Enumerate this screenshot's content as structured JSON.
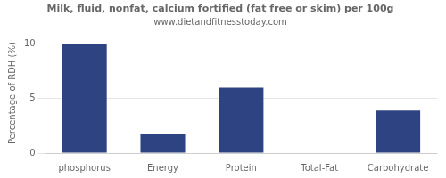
{
  "chart_data": {
    "type": "bar",
    "title": "Milk, fluid, nonfat, calcium fortified (fat free or skim) per 100g",
    "subtitle": "www.dietandfitnesstoday.com",
    "categories": [
      "phosphorus",
      "Energy",
      "Protein",
      "Total-Fat",
      "Carbohydrate"
    ],
    "values": [
      10.0,
      1.8,
      6.0,
      0.05,
      3.9
    ],
    "color": "#2e4482",
    "ylabel": "Percentage of RDH (%)",
    "ylim": [
      0,
      11
    ],
    "yticks": [
      0,
      5,
      10
    ],
    "grid": true
  }
}
